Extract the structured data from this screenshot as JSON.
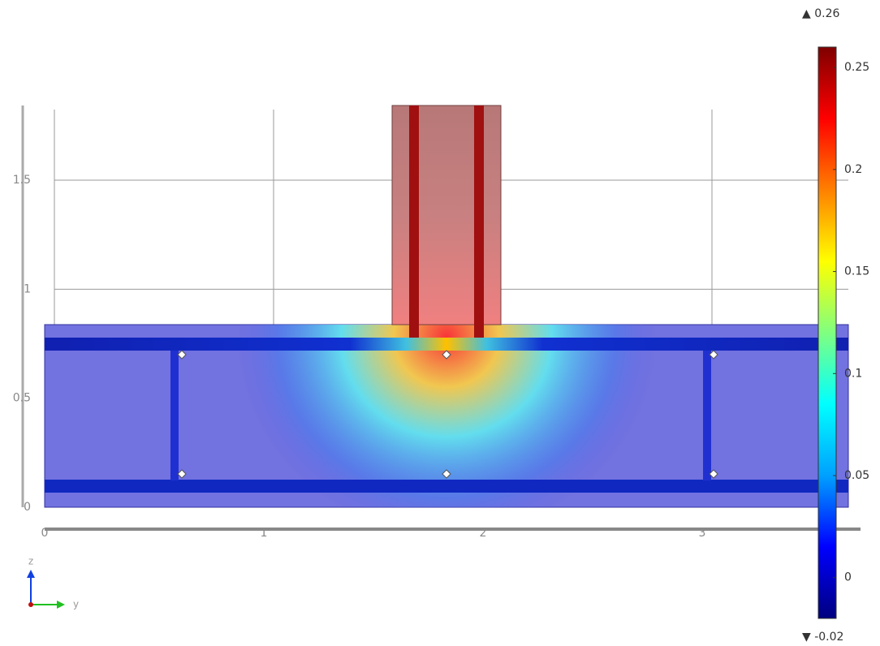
{
  "chart_data": {
    "type": "heatmap",
    "x_label": "y",
    "y_label": "z",
    "xlim": [
      0,
      3.7
    ],
    "ylim": [
      0,
      1.85
    ],
    "xticks": [
      0,
      1,
      2,
      3
    ],
    "yticks": [
      0,
      0.5,
      1,
      1.5
    ],
    "grid": true,
    "clim": [
      -0.02,
      0.26
    ],
    "cticks": [
      0,
      0.05,
      0.1,
      0.15,
      0.2,
      0.25
    ],
    "cmax": {
      "value": 0.26,
      "label": "▲ 0.26"
    },
    "cmin": {
      "value": -0.02,
      "label": "▼ -0.02"
    },
    "colormap": [
      "#00007f",
      "#0000ff",
      "#00a0ff",
      "#00ffff",
      "#80ff80",
      "#ffff00",
      "#ff8000",
      "#ff0000",
      "#7f0000"
    ]
  }
}
